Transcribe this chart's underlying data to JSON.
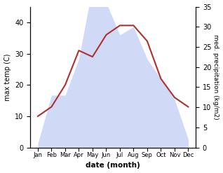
{
  "months": [
    "Jan",
    "Feb",
    "Mar",
    "Apr",
    "May",
    "Jun",
    "Jul",
    "Aug",
    "Sep",
    "Oct",
    "Nov",
    "Dec"
  ],
  "temp": [
    10,
    13,
    20,
    31,
    29,
    36,
    39,
    39,
    34,
    22,
    16,
    13
  ],
  "precip": [
    1,
    13,
    13,
    22,
    40,
    36,
    28,
    30,
    22,
    17,
    12,
    2
  ],
  "temp_color": "#b03030",
  "precip_fill_color": "#c8d4f5",
  "precip_fill_alpha": 0.85,
  "ylabel_left": "max temp (C)",
  "ylabel_right": "med. precipitation (kg/m2)",
  "xlabel": "date (month)",
  "ylim_left": [
    0,
    45
  ],
  "ylim_right": [
    0,
    35
  ],
  "yticks_left": [
    0,
    10,
    20,
    30,
    40
  ],
  "yticks_right": [
    0,
    5,
    10,
    15,
    20,
    25,
    30,
    35
  ],
  "precip_scale_factor": 1.2857,
  "temp_linewidth": 1.5,
  "bg_color": "#ffffff"
}
